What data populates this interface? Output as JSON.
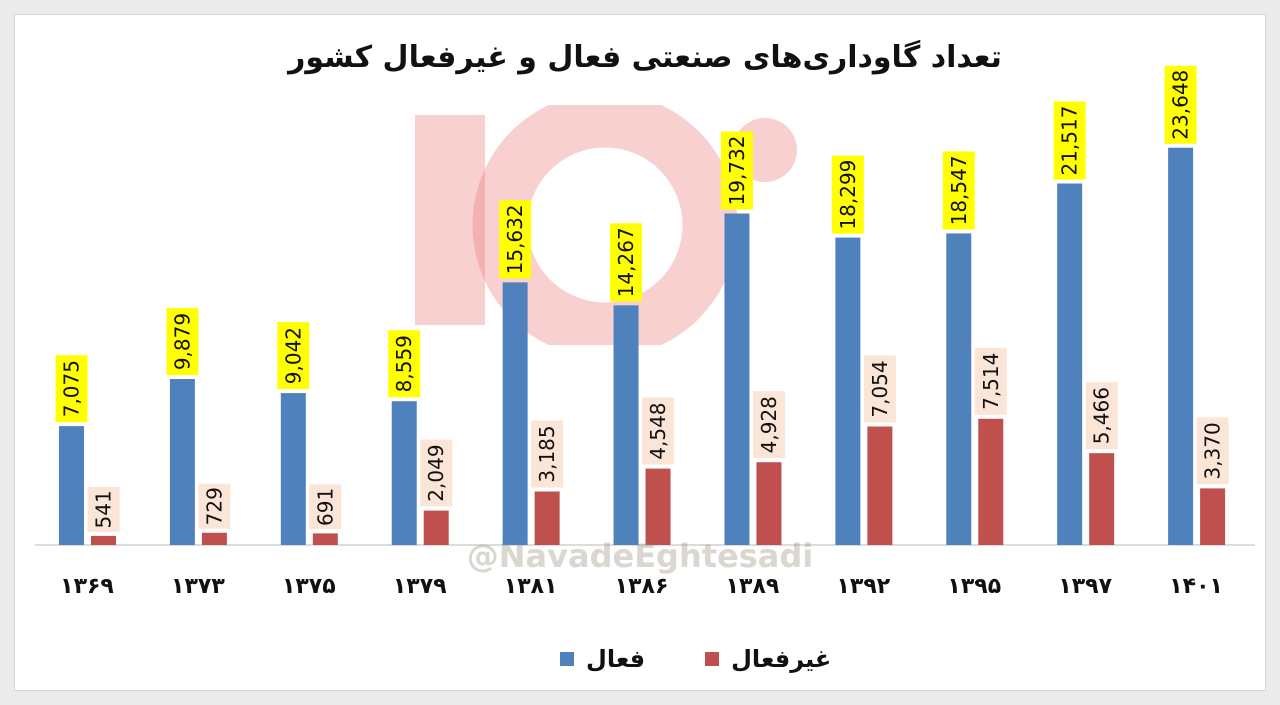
{
  "colors": {
    "active": "#4f81bd",
    "inactive": "#c0504d",
    "active_label_bg": "#ffff00",
    "inactive_label_bg": "#fbe5d6"
  },
  "watermark": "@NavadeEghtesadi",
  "chart_data": {
    "type": "bar",
    "title": "تعداد گاوداری‌های صنعتی فعال و غیرفعال کشور",
    "categories": [
      "۱۳۶۹",
      "۱۳۷۳",
      "۱۳۷۵",
      "۱۳۷۹",
      "۱۳۸۱",
      "۱۳۸۶",
      "۱۳۸۹",
      "۱۳۹۲",
      "۱۳۹۵",
      "۱۳۹۷",
      "۱۴۰۱"
    ],
    "series": [
      {
        "name": "فعال",
        "values": [
          7075,
          9879,
          9042,
          8559,
          15632,
          14267,
          19732,
          18299,
          18547,
          21517,
          23648
        ],
        "labels": [
          "7,075",
          "9,879",
          "9,042",
          "8,559",
          "15,632",
          "14,267",
          "19,732",
          "18,299",
          "18,547",
          "21,517",
          "23,648"
        ]
      },
      {
        "name": "غیرفعال",
        "values": [
          541,
          729,
          691,
          2049,
          3185,
          4548,
          4928,
          7054,
          7514,
          5466,
          3370
        ],
        "labels": [
          "541",
          "729",
          "691",
          "2,049",
          "3,185",
          "4,548",
          "4,928",
          "7,054",
          "7,514",
          "5,466",
          "3,370"
        ]
      }
    ],
    "ylim": [
      0,
      25000
    ],
    "grid": false,
    "legend": "bottom-center"
  }
}
